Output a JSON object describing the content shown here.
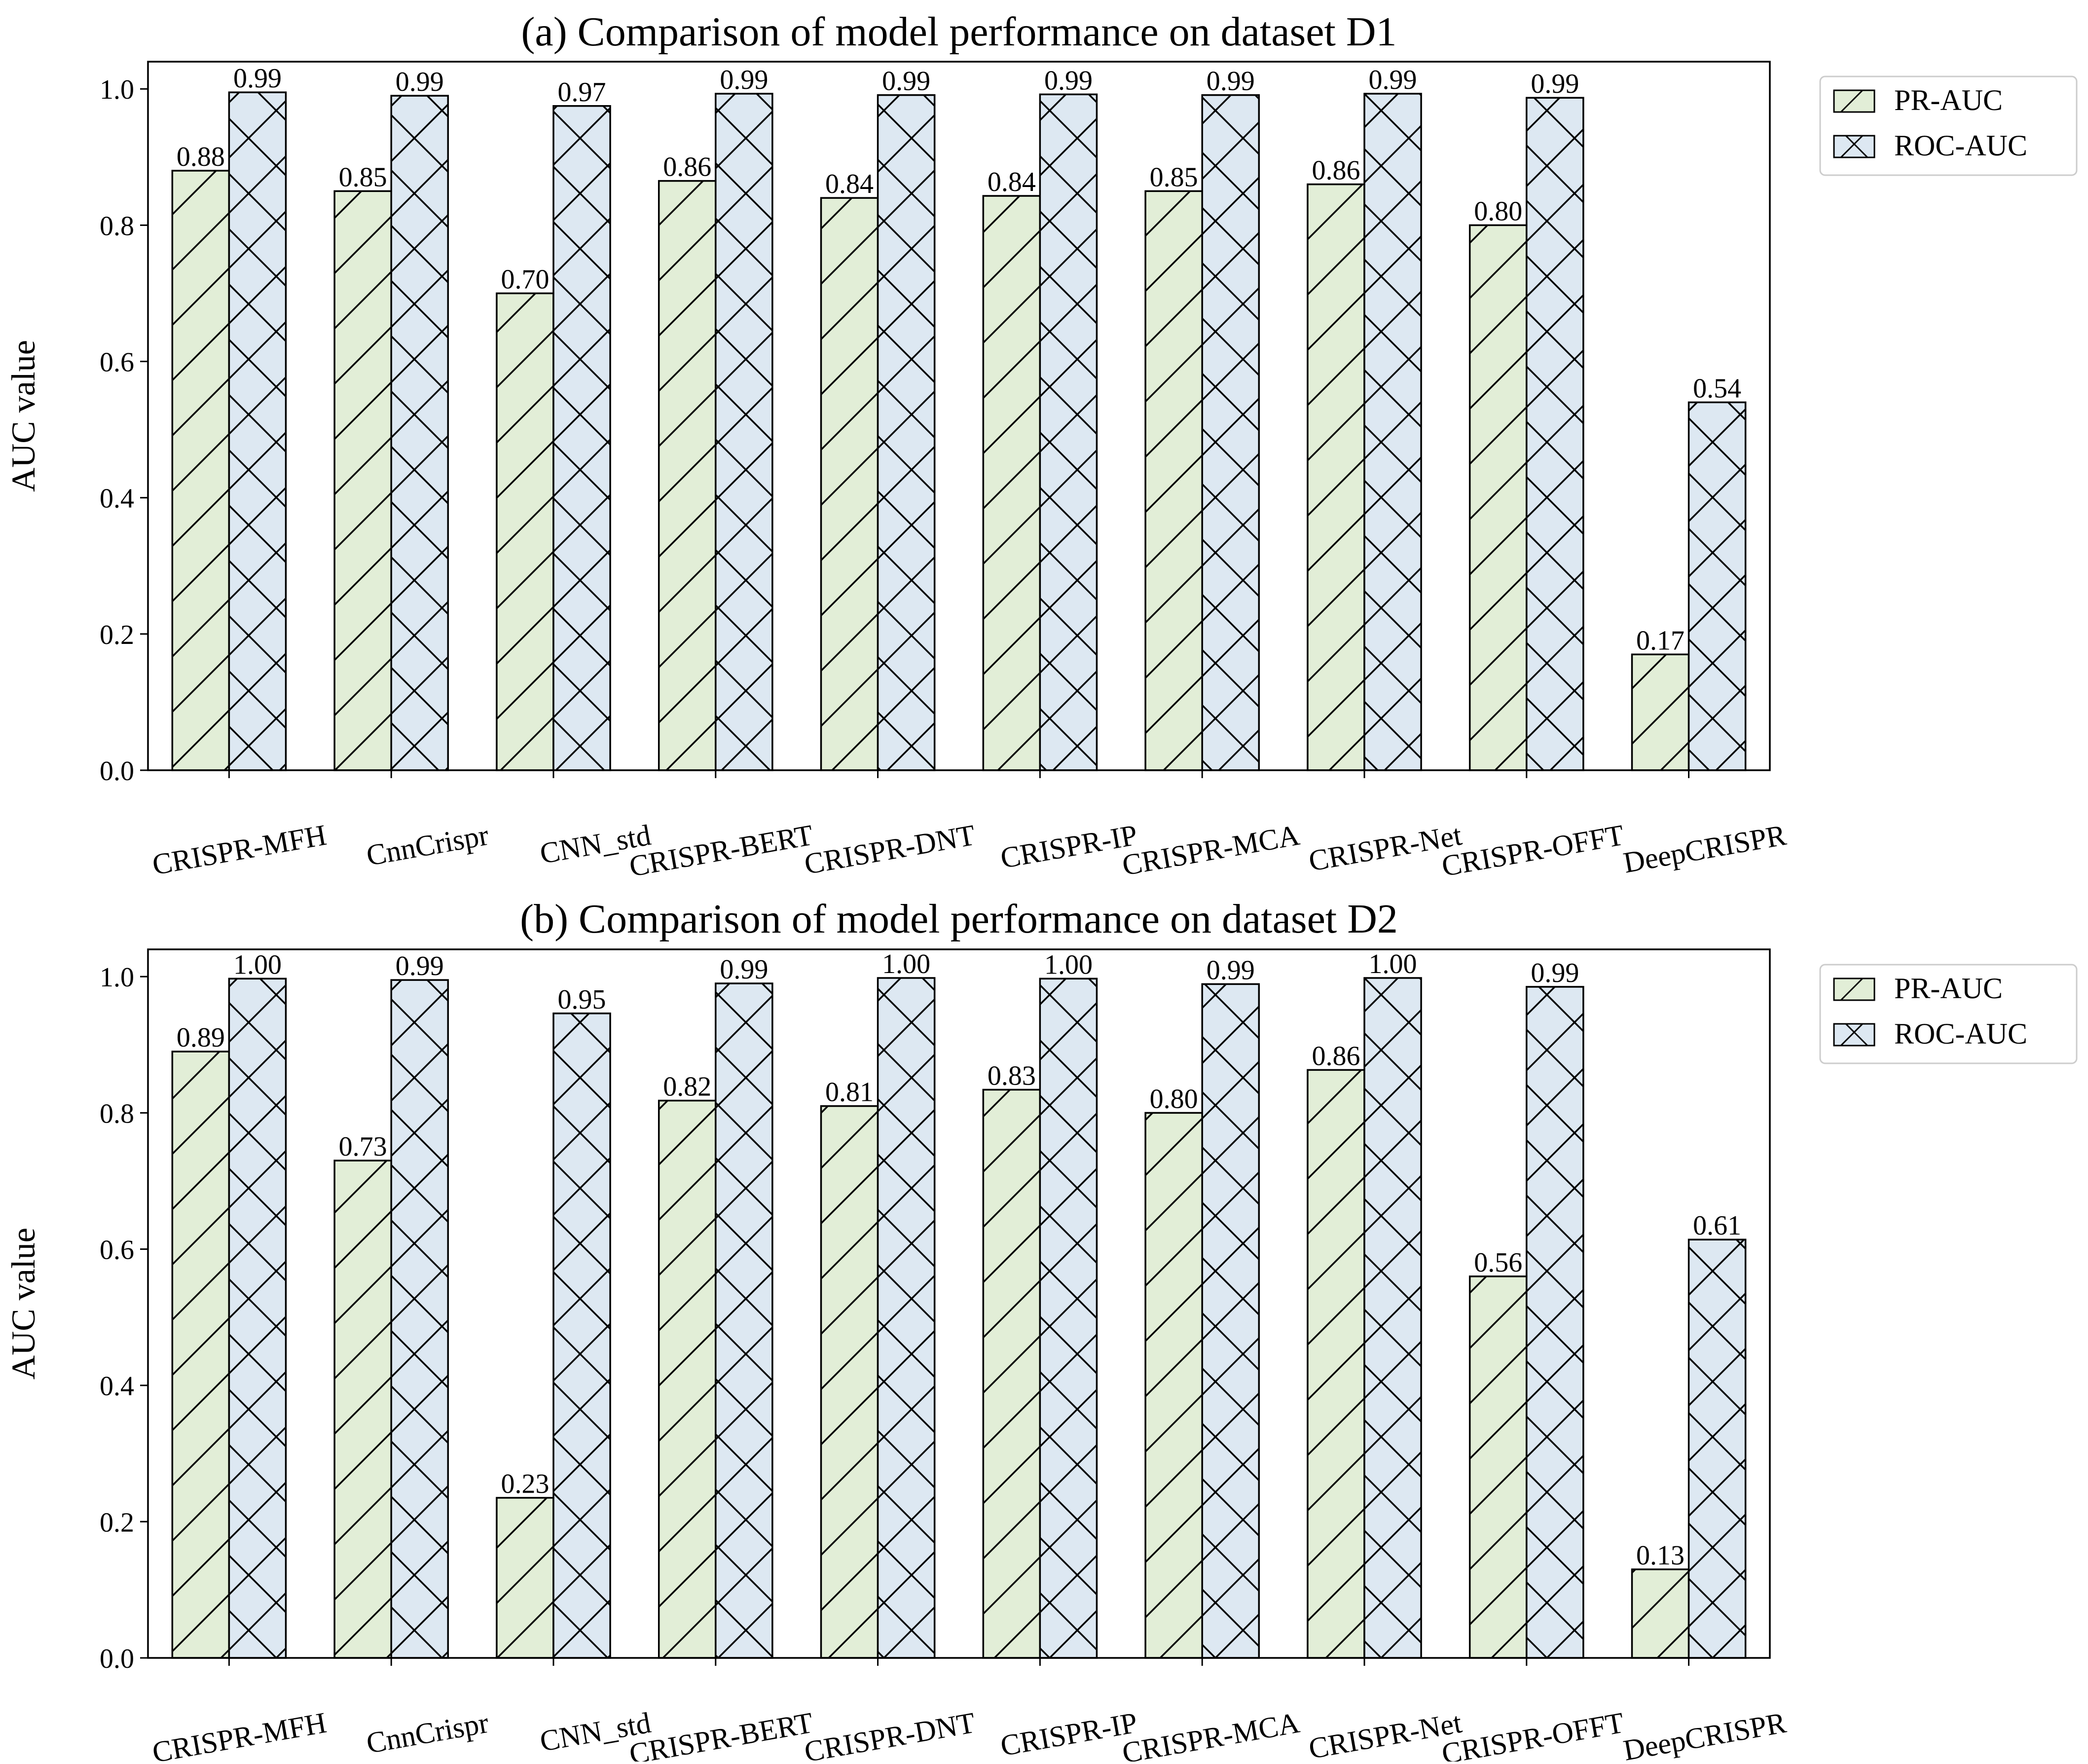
{
  "colors": {
    "pr_fill": "#e2eed7",
    "roc_fill": "#dde8f2",
    "stroke": "#000000"
  },
  "chart_data": [
    {
      "type": "bar",
      "title": "(a) Comparison of model performance on dataset D1",
      "xlabel": "",
      "ylabel": "AUC value",
      "ylim": [
        0,
        1.04
      ],
      "yticks": [
        "0.0",
        "0.2",
        "0.4",
        "0.6",
        "0.8",
        "1.0"
      ],
      "legend_position": "outside-top-right",
      "categories": [
        "CRISPR-MFH",
        "CnnCrispr",
        "CNN_std",
        "CRISPR-BERT",
        "CRISPR-DNT",
        "CRISPR-IP",
        "CRISPR-MCA",
        "CRISPR-Net",
        "CRISPR-OFFT",
        "DeepCRISPR"
      ],
      "series": [
        {
          "name": "PR-AUC",
          "hatch": "single-diagonal",
          "values": [
            0.88,
            0.85,
            0.7,
            0.865,
            0.84,
            0.843,
            0.85,
            0.86,
            0.8,
            0.17
          ],
          "labels": [
            "0.88",
            "0.85",
            "0.70",
            "0.86",
            "0.84",
            "0.84",
            "0.85",
            "0.86",
            "0.80",
            "0.17"
          ]
        },
        {
          "name": "ROC-AUC",
          "hatch": "cross-diagonal",
          "values": [
            0.995,
            0.99,
            0.975,
            0.993,
            0.991,
            0.992,
            0.991,
            0.993,
            0.987,
            0.54
          ],
          "labels": [
            "0.99",
            "0.99",
            "0.97",
            "0.99",
            "0.99",
            "0.99",
            "0.99",
            "0.99",
            "0.99",
            "0.54"
          ]
        }
      ]
    },
    {
      "type": "bar",
      "title": "(b) Comparison of model performance on dataset D2",
      "xlabel": "",
      "ylabel": "AUC value",
      "ylim": [
        0,
        1.04
      ],
      "yticks": [
        "0.0",
        "0.2",
        "0.4",
        "0.6",
        "0.8",
        "1.0"
      ],
      "legend_position": "outside-top-right",
      "categories": [
        "CRISPR-MFH",
        "CnnCrispr",
        "CNN_std",
        "CRISPR-BERT",
        "CRISPR-DNT",
        "CRISPR-IP",
        "CRISPR-MCA",
        "CRISPR-Net",
        "CRISPR-OFFT",
        "DeepCRISPR"
      ],
      "series": [
        {
          "name": "PR-AUC",
          "hatch": "single-diagonal",
          "values": [
            0.89,
            0.73,
            0.235,
            0.818,
            0.81,
            0.834,
            0.8,
            0.863,
            0.56,
            0.13
          ],
          "labels": [
            "0.89",
            "0.73",
            "0.23",
            "0.82",
            "0.81",
            "0.83",
            "0.80",
            "0.86",
            "0.56",
            "0.13"
          ]
        },
        {
          "name": "ROC-AUC",
          "hatch": "cross-diagonal",
          "values": [
            0.997,
            0.995,
            0.946,
            0.99,
            0.998,
            0.997,
            0.989,
            0.998,
            0.985,
            0.614
          ],
          "labels": [
            "1.00",
            "0.99",
            "0.95",
            "0.99",
            "1.00",
            "1.00",
            "0.99",
            "1.00",
            "0.99",
            "0.61"
          ]
        }
      ]
    }
  ]
}
